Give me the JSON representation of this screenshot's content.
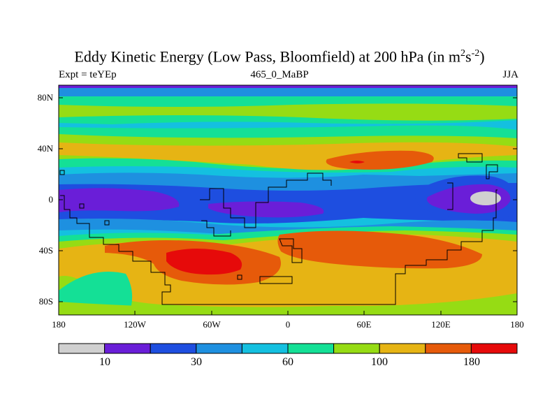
{
  "title": {
    "main": "Eddy Kinetic Energy (Low Pass, Bloomfield) at 200 hPa (in m",
    "sup1": "2",
    "mid": "s",
    "sup2": "-2",
    "end": ")"
  },
  "subtitle": {
    "left": "Expt = teYEp",
    "center": "465_0_MaBP",
    "right": "JJA"
  },
  "axes": {
    "y_ticks": [
      "80N",
      "40N",
      "0",
      "40S",
      "80S"
    ],
    "x_ticks": [
      "180",
      "120W",
      "60W",
      "0",
      "60E",
      "120E",
      "180"
    ]
  },
  "colorbar": {
    "colors": [
      "#d0d0d0",
      "#6a1ed8",
      "#1e4ee0",
      "#1e90e0",
      "#14c0e0",
      "#14e096",
      "#96dc14",
      "#e6b414",
      "#e65a0a",
      "#e60a0a"
    ],
    "labels": [
      "10",
      "30",
      "60",
      "100",
      "180"
    ]
  },
  "map": {
    "background_color": "#14c0e0"
  }
}
